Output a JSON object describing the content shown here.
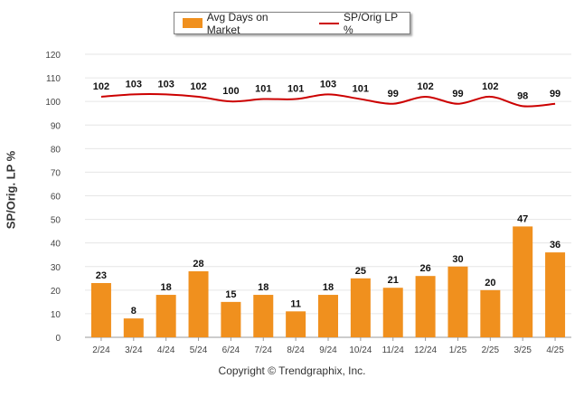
{
  "chart_data": {
    "type": "bar",
    "categories": [
      "2/24",
      "3/24",
      "4/24",
      "5/24",
      "6/24",
      "7/24",
      "8/24",
      "9/24",
      "10/24",
      "11/24",
      "12/24",
      "1/25",
      "2/25",
      "3/25",
      "4/25"
    ],
    "series": [
      {
        "name": "Avg Days on Market",
        "type": "bar",
        "color": "#F0901E",
        "values": [
          23,
          8,
          18,
          28,
          15,
          18,
          11,
          18,
          25,
          21,
          26,
          30,
          20,
          47,
          36
        ]
      },
      {
        "name": "SP/Orig LP %",
        "type": "line",
        "color": "#CC0000",
        "values": [
          102,
          103,
          103,
          102,
          100,
          101,
          101,
          103,
          101,
          99,
          102,
          99,
          102,
          98,
          99
        ]
      }
    ],
    "xlabel": "",
    "ylabel": "SP/Orig. LP %",
    "ylim": [
      0,
      120
    ],
    "yticks": [
      0,
      10,
      20,
      30,
      40,
      50,
      60,
      70,
      80,
      90,
      100,
      110,
      120
    ],
    "grid": true,
    "legend_position": "top"
  },
  "footer": {
    "copyright": "Copyright © Trendgraphix, Inc."
  }
}
